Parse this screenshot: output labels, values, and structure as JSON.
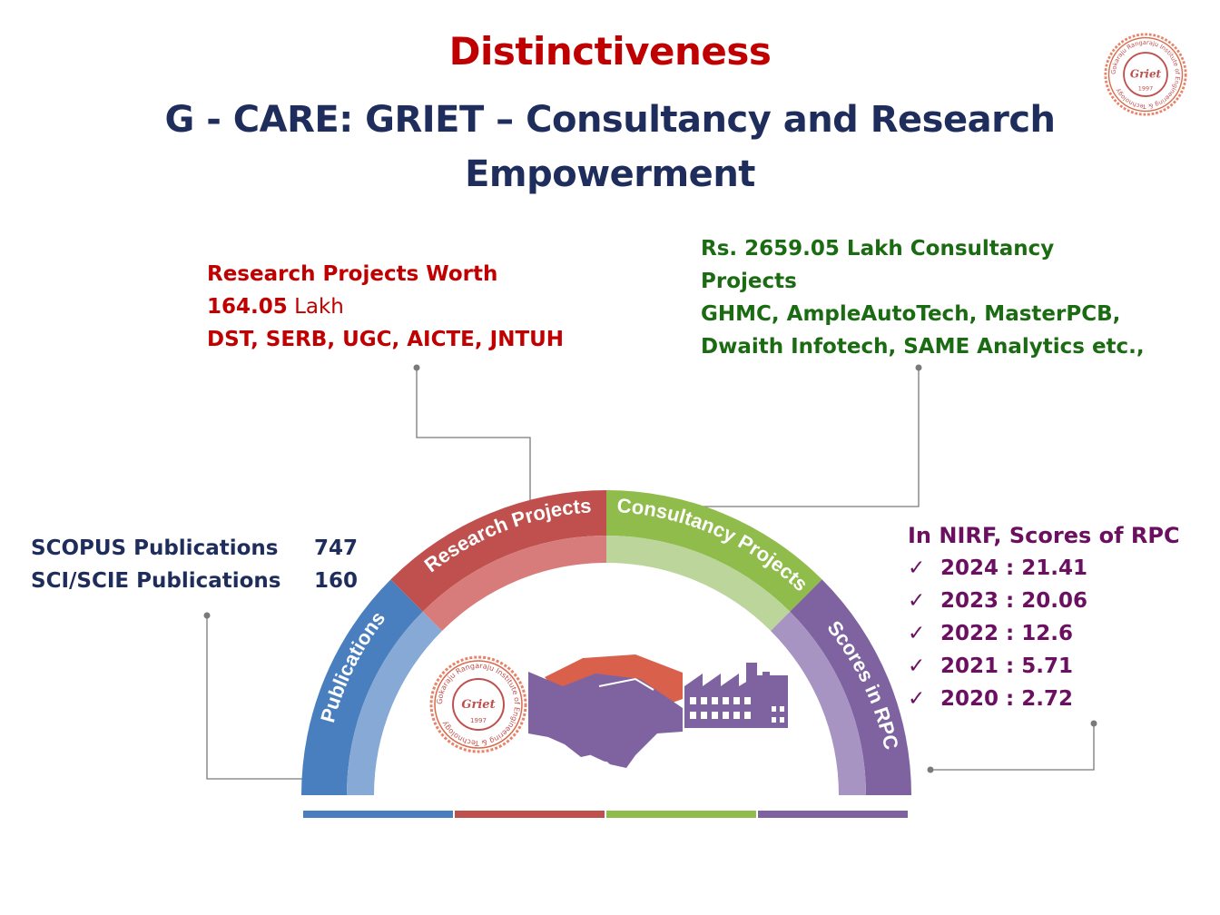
{
  "header": {
    "title": "Distinctiveness",
    "subtitle": "G -  CARE: GRIET – Consultancy and Research Empowerment"
  },
  "research": {
    "line1": "Research Projects Worth",
    "amount": "164.05",
    "unit": " Lakh",
    "line3": "DST, SERB, UGC, AICTE, JNTUH"
  },
  "consultancy": {
    "prefix": "Rs. ",
    "amount": "2659.05",
    "line1_rest": " Lakh Consultancy",
    "line2": "Projects",
    "line3": "GHMC, AmpleAutoTech, MasterPCB,",
    "line4": "Dwaith Infotech, SAME Analytics etc.,"
  },
  "publications": {
    "rows": [
      {
        "label": "SCOPUS Publications",
        "value": "747"
      },
      {
        "label": "SCI/SCIE Publications",
        "value": "160"
      }
    ]
  },
  "rpc": {
    "heading": "In NIRF, Scores of RPC",
    "check": "✓",
    "items": [
      "2024 : 21.41",
      "2023 : 20.06",
      "2022 : 12.6",
      "2021 : 5.71",
      "2020 : 2.72"
    ]
  },
  "arc": {
    "segments": [
      {
        "label": "Publications",
        "color": "#4a7fbf",
        "light": "#86a9d6"
      },
      {
        "label": "Research Projects",
        "color": "#c0504d",
        "light": "#d77c7a"
      },
      {
        "label": "Consultancy Projects",
        "color": "#8fbc4a",
        "light": "#bcd59a"
      },
      {
        "label": "Scores in RPC",
        "color": "#7e63a0",
        "light": "#a794c2"
      }
    ]
  },
  "logo": {
    "ring_text": "Gokaraju Rangaraju Institute of Engineering & Technology",
    "name": "Griet",
    "year": "1997"
  }
}
